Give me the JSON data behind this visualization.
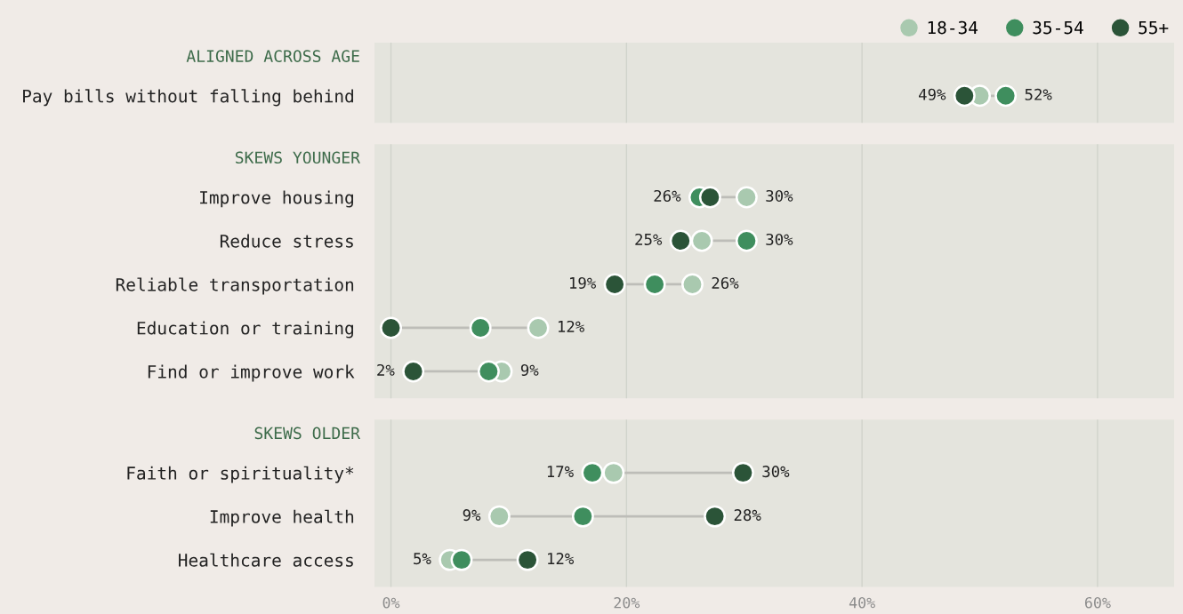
{
  "chart_data": [
    {
      "type": "scatter",
      "orientation": "horizontal",
      "title": "ALIGNED ACROSS AGE",
      "categories": [
        "Pay bills without falling behind"
      ],
      "legend": "top right",
      "grid": "x",
      "marker": "circle",
      "tick_labels": "y",
      "xlim": [
        -1.4,
        66.5
      ],
      "xticks": [
        {
          "value": 0,
          "label": null
        },
        {
          "value": 20,
          "label": null
        },
        {
          "value": 40,
          "label": null
        },
        {
          "value": 60,
          "label": null
        }
      ],
      "series": [
        {
          "name": "18-34",
          "color": "#a9c9af",
          "values": [
            50
          ],
          "value_labels": [
            null
          ]
        },
        {
          "name": "35-54",
          "color": "#3f8e5e",
          "values": [
            52.2
          ],
          "value_labels": [
            "52%"
          ]
        },
        {
          "name": "55+",
          "color": "#2b5438",
          "values": [
            48.7
          ],
          "value_labels": [
            "49%"
          ]
        }
      ]
    },
    {
      "type": "scatter",
      "orientation": "horizontal",
      "title": "SKEWS YOUNGER",
      "categories": [
        "Improve housing",
        "Reduce stress",
        "Reliable transportation",
        "Education or training",
        "Find or improve work"
      ],
      "grid": "x",
      "marker": "circle",
      "tick_labels": "y",
      "xlim": [
        -1.4,
        66.5
      ],
      "xticks": [
        {
          "value": 0,
          "label": null
        },
        {
          "value": 20,
          "label": null
        },
        {
          "value": 40,
          "label": null
        },
        {
          "value": 60,
          "label": null
        }
      ],
      "series": [
        {
          "color": "#a9c9af",
          "values": [
            30.2,
            26.4,
            25.6,
            12.5,
            9.4
          ],
          "value_labels": [
            "30%",
            null,
            "26%",
            "12%",
            "9%"
          ]
        },
        {
          "color": "#3f8e5e",
          "values": [
            26.2,
            30.2,
            22.4,
            7.6,
            8.3
          ],
          "value_labels": [
            "26%",
            "30%",
            null,
            null,
            null
          ]
        },
        {
          "color": "#2b5438",
          "values": [
            27.1,
            24.6,
            19.0,
            0,
            1.9
          ],
          "value_labels": [
            null,
            "25%",
            "19%",
            null,
            "2%"
          ]
        }
      ]
    },
    {
      "type": "scatter",
      "orientation": "horizontal",
      "title": "SKEWS OLDER",
      "categories": [
        "Faith or spirituality*",
        "Improve health",
        "Healthcare access"
      ],
      "grid": "x",
      "marker": "circle",
      "xlim": [
        -1.4,
        66.5
      ],
      "xticks": [
        {
          "value": 0,
          "label": "0%"
        },
        {
          "value": 20,
          "label": "20%"
        },
        {
          "value": 40,
          "label": "40%"
        },
        {
          "value": 60,
          "label": "60%"
        }
      ],
      "series": [
        {
          "color": "#a9c9af",
          "values": [
            18.9,
            9.2,
            5.0
          ],
          "value_labels": [
            null,
            "9%",
            "5%"
          ]
        },
        {
          "color": "#3f8e5e",
          "values": [
            17.1,
            16.3,
            6.0
          ],
          "value_labels": [
            "17%",
            null,
            null
          ]
        },
        {
          "color": "#2b5438",
          "values": [
            29.9,
            27.5,
            11.6
          ],
          "value_labels": [
            "30%",
            "28%",
            "12%"
          ]
        }
      ]
    }
  ]
}
